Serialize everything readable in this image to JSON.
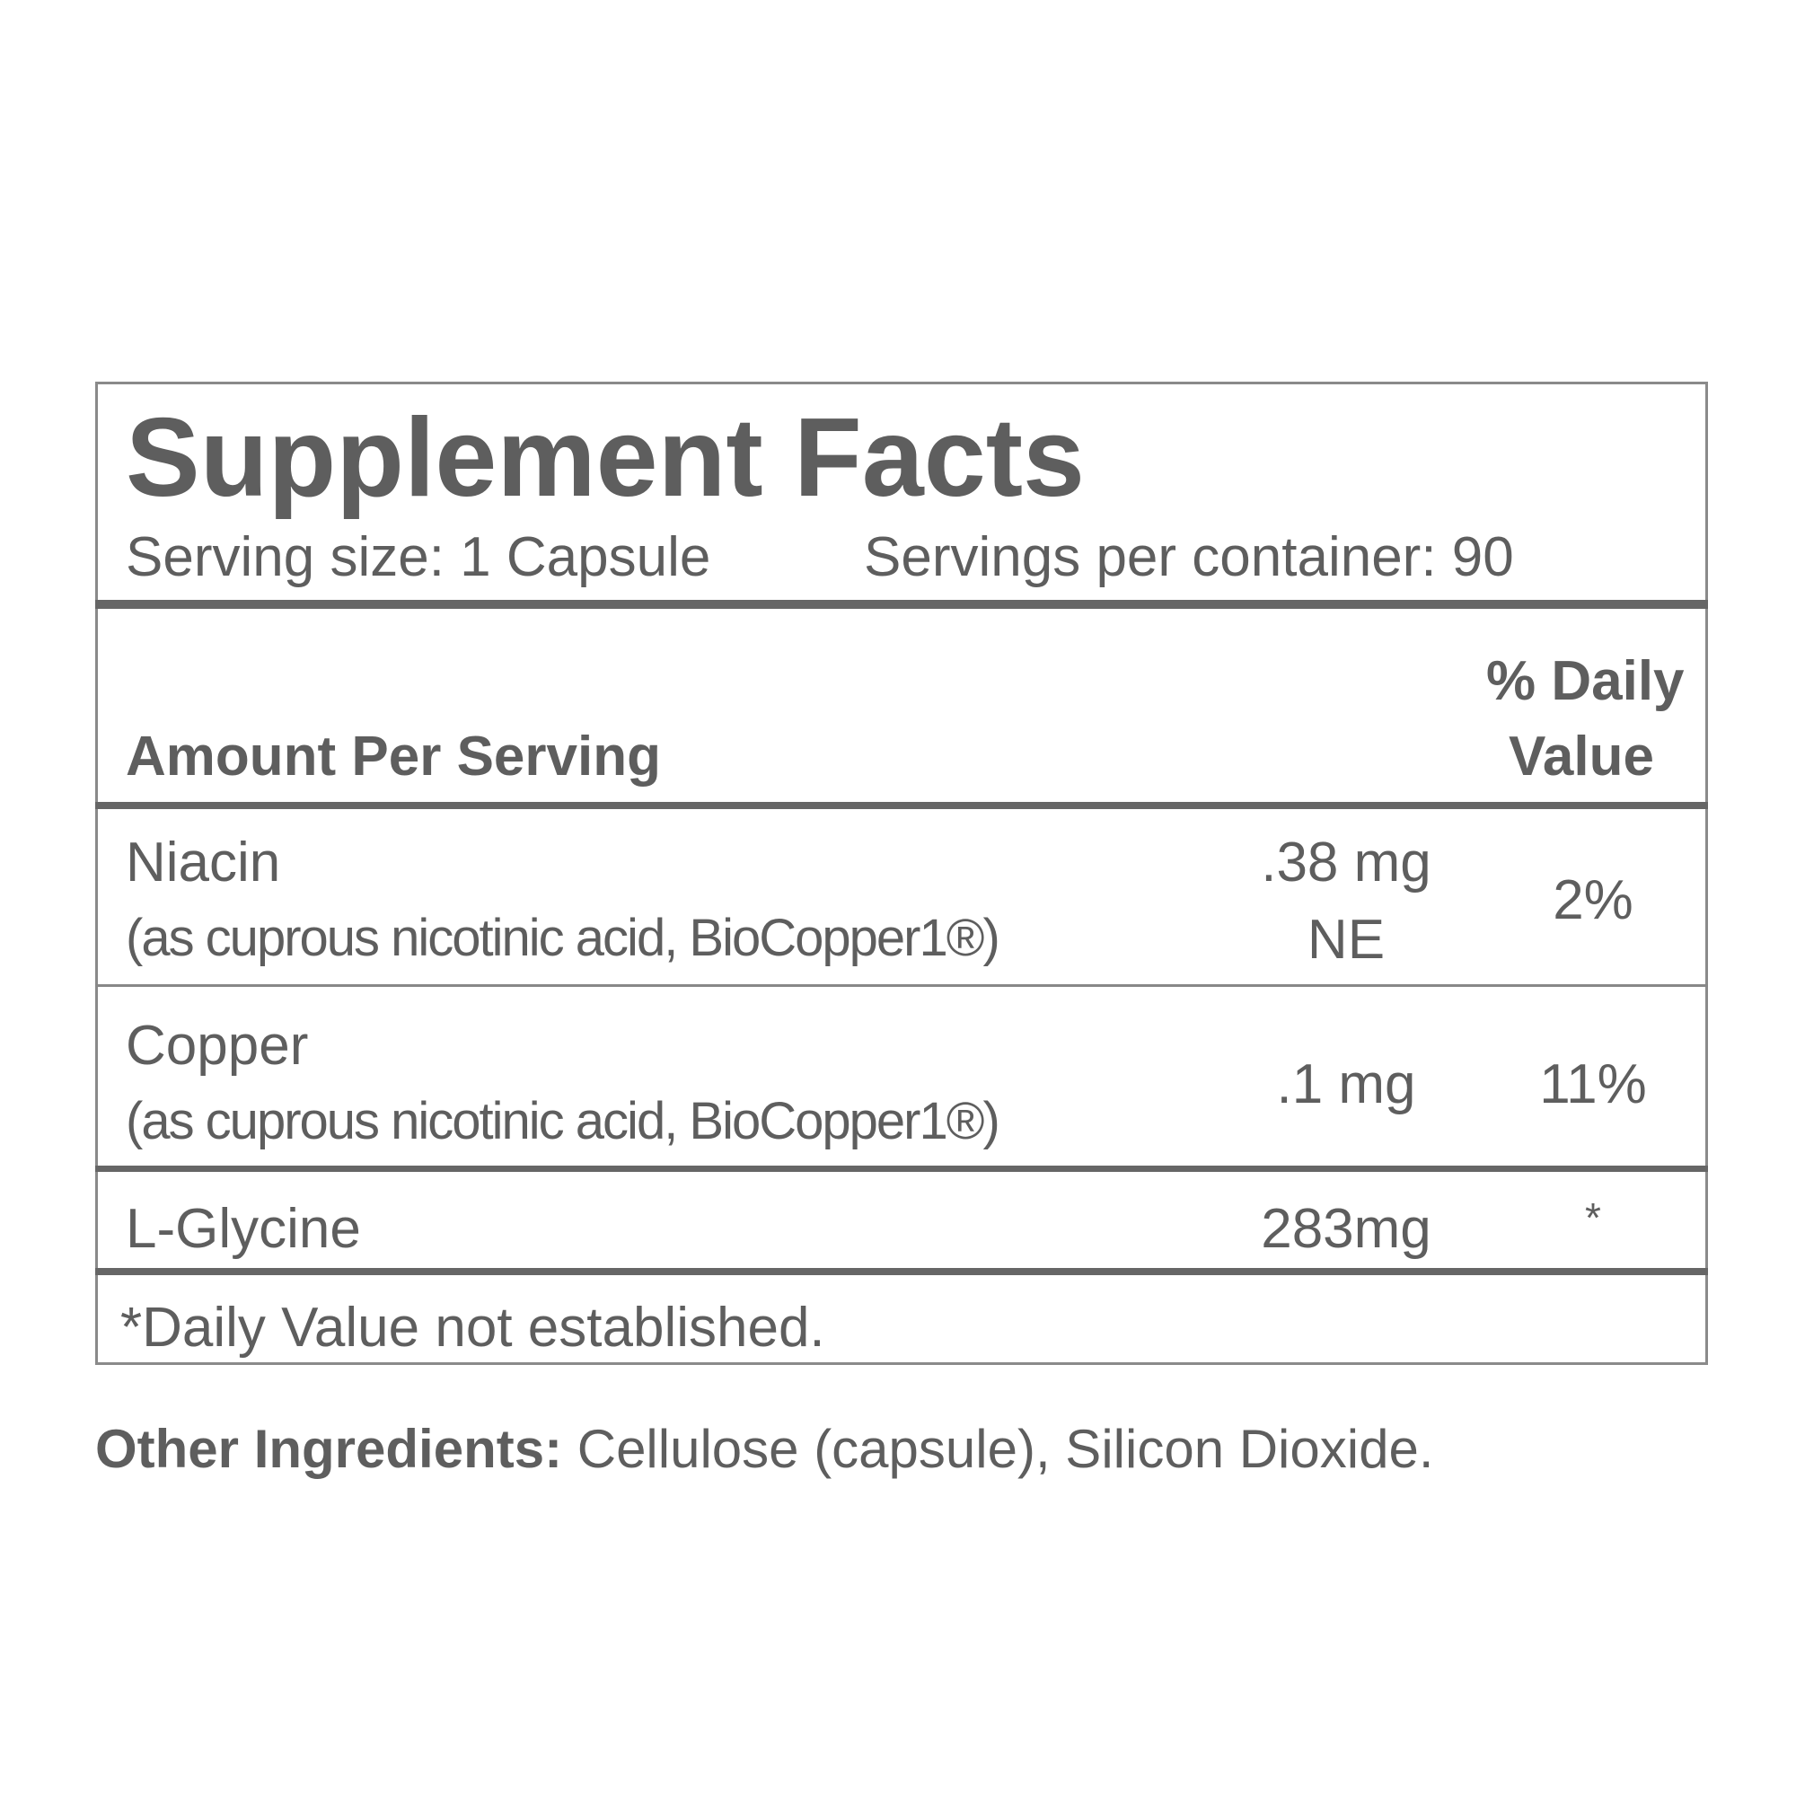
{
  "label": {
    "title": "Supplement Facts",
    "serving_size": "Serving size: 1 Capsule",
    "servings_per_container": "Servings per container: 90",
    "header": {
      "amount_per_serving": "Amount Per Serving",
      "daily_value_line1": "% Daily",
      "daily_value_line2": "Value"
    },
    "rows": [
      {
        "name": "Niacin",
        "source": "(as cuprous nicotinic acid, BioCopper1®)",
        "amount_line1": ".38 mg",
        "amount_line2": "NE",
        "daily_value": "2%"
      },
      {
        "name": "Copper",
        "source": "(as cuprous nicotinic acid, BioCopper1®)",
        "amount": ".1 mg",
        "daily_value": "11%"
      },
      {
        "name": "L-Glycine",
        "amount": "283mg",
        "daily_value": "*"
      }
    ],
    "footnote": "*Daily Value not established.",
    "other_ingredients_label": "Other Ingredients:",
    "other_ingredients": "Cellulose (capsule), Silicon Dioxide."
  }
}
